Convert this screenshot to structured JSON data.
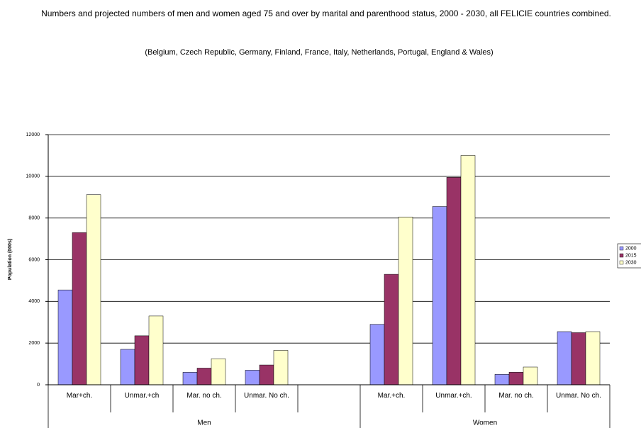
{
  "chart_data": {
    "type": "bar",
    "title": "Numbers and projected numbers of men and women aged 75 and over by marital and parenthood status, 2000 - 2030, all FELICIE countries combined.",
    "subtitle": "(Belgium, Czech Republic, Germany, Finland, France, Italy, Netherlands, Portugal, England & Wales)",
    "y_label": "Population (000s)",
    "categories": [
      "Mar+ch.",
      "Unmar.+ch",
      "Mar. no ch.",
      "Unmar. No ch.",
      null,
      "Mar.+ch.",
      "Unmar.+ch.",
      "Mar. no ch.",
      "Unmar. No ch."
    ],
    "groups": [
      "Men",
      "Women"
    ],
    "series": [
      {
        "name": "2000",
        "color": "#9999ff",
        "values": [
          4550,
          1700,
          600,
          700,
          null,
          2900,
          8550,
          500,
          2550
        ]
      },
      {
        "name": "2015",
        "color": "#993366",
        "values": [
          7300,
          2350,
          800,
          950,
          null,
          5300,
          9950,
          600,
          2500
        ]
      },
      {
        "name": "2030",
        "color": "#ffffcc",
        "values": [
          9120,
          3300,
          1250,
          1650,
          null,
          8050,
          11000,
          850,
          2550
        ]
      }
    ],
    "ylim": [
      0,
      12000
    ],
    "yticks": [
      0,
      2000,
      4000,
      6000,
      8000,
      10000,
      12000
    ],
    "grid": true,
    "legend": "right"
  }
}
